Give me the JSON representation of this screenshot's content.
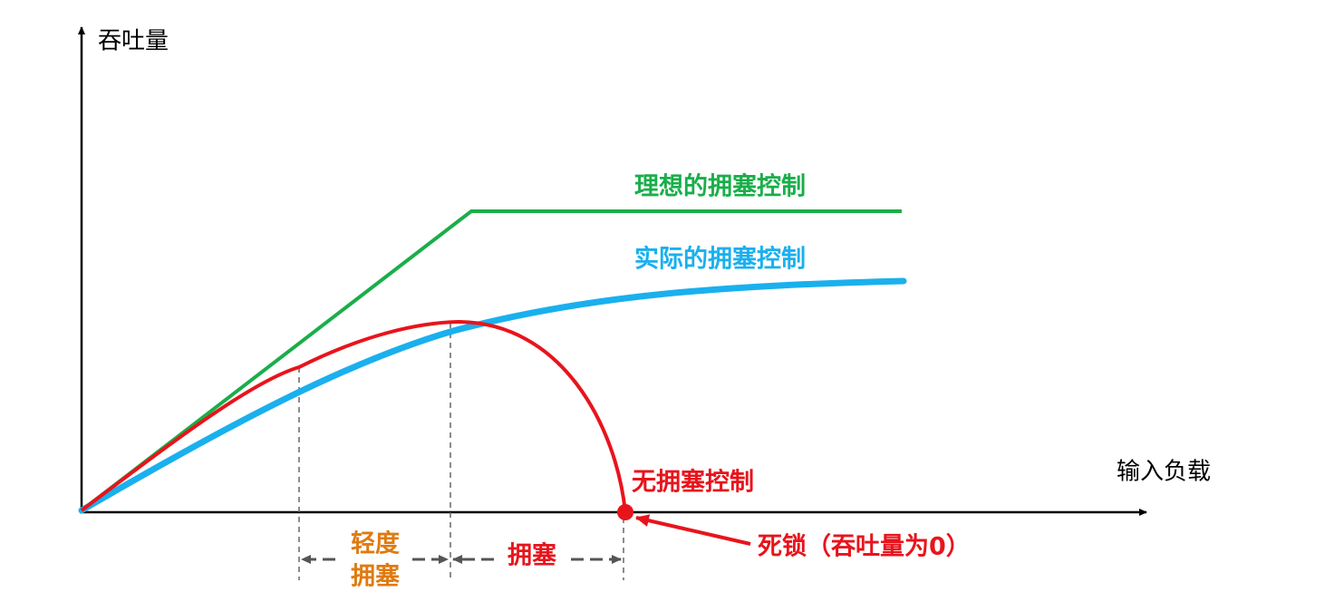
{
  "axes": {
    "y_label": "吞吐量",
    "x_label": "输入负载"
  },
  "curves": [
    {
      "label": "理想的拥塞控制"
    },
    {
      "label": "实际的拥塞控制"
    },
    {
      "label": "无拥塞控制"
    }
  ],
  "regions": [
    {
      "label_lines": [
        "轻度",
        "拥塞"
      ]
    },
    {
      "label": "拥塞"
    }
  ],
  "annotation": "死锁（吞吐量为0）"
}
